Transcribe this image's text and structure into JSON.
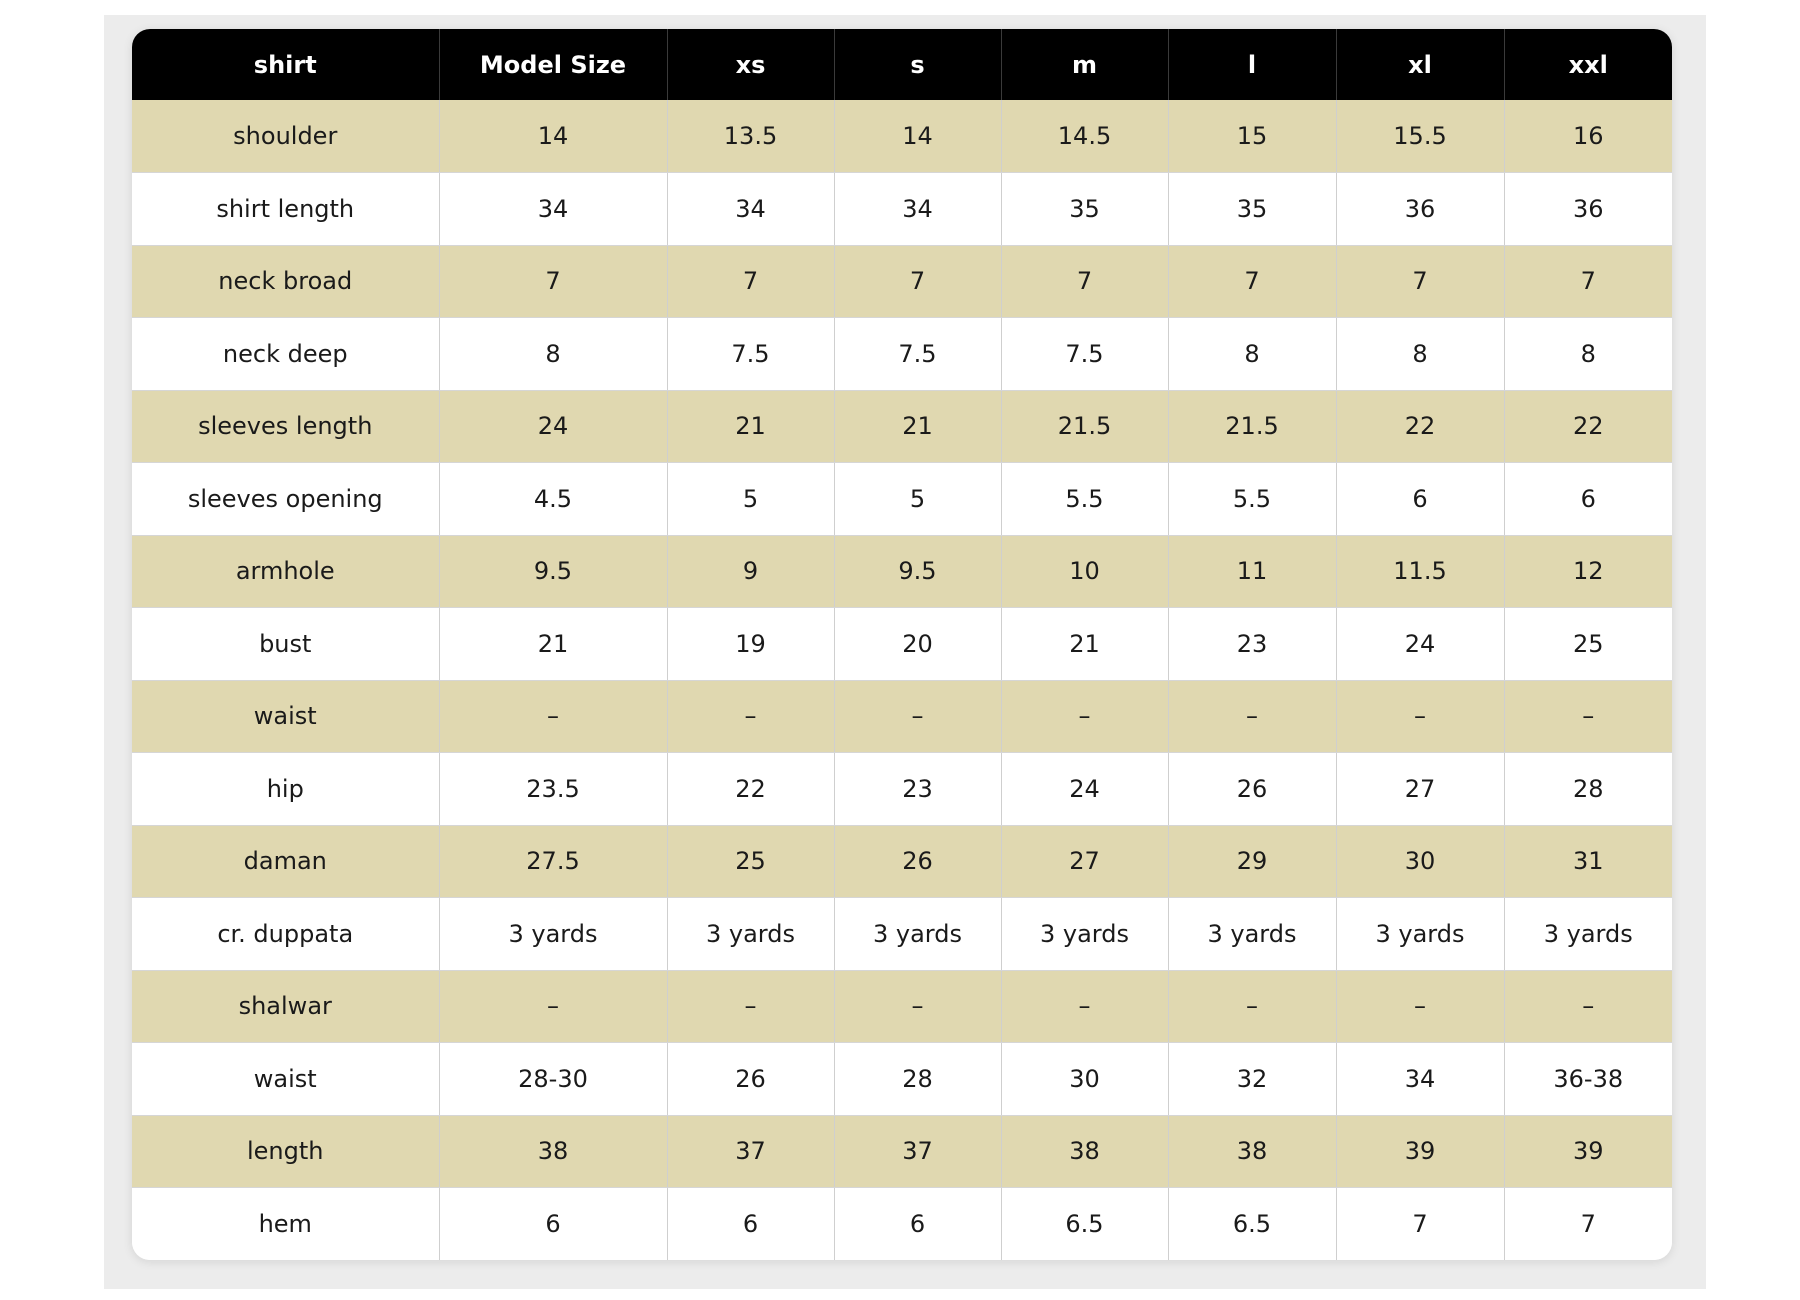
{
  "colors": {
    "header_bg": "#000000",
    "header_text": "#ffffff",
    "band_row": "#e0d8b0",
    "plain_row": "#ffffff",
    "backdrop": "#ececec"
  },
  "table": {
    "headers": [
      "shirt",
      "Model Size",
      "xs",
      "s",
      "m",
      "l",
      "xl",
      "xxl"
    ],
    "rows": [
      [
        "shoulder",
        "14",
        "13.5",
        "14",
        "14.5",
        "15",
        "15.5",
        "16"
      ],
      [
        "shirt length",
        "34",
        "34",
        "34",
        "35",
        "35",
        "36",
        "36"
      ],
      [
        "neck broad",
        "7",
        "7",
        "7",
        "7",
        "7",
        "7",
        "7"
      ],
      [
        "neck deep",
        "8",
        "7.5",
        "7.5",
        "7.5",
        "8",
        "8",
        "8"
      ],
      [
        "sleeves length",
        "24",
        "21",
        "21",
        "21.5",
        "21.5",
        "22",
        "22"
      ],
      [
        "sleeves opening",
        "4.5",
        "5",
        "5",
        "5.5",
        "5.5",
        "6",
        "6"
      ],
      [
        "armhole",
        "9.5",
        "9",
        "9.5",
        "10",
        "11",
        "11.5",
        "12"
      ],
      [
        "bust",
        "21",
        "19",
        "20",
        "21",
        "23",
        "24",
        "25"
      ],
      [
        "waist",
        "–",
        "–",
        "–",
        "–",
        "–",
        "–",
        "–"
      ],
      [
        "hip",
        "23.5",
        "22",
        "23",
        "24",
        "26",
        "27",
        "28"
      ],
      [
        "daman",
        "27.5",
        "25",
        "26",
        "27",
        "29",
        "30",
        "31"
      ],
      [
        "cr. duppata",
        "3 yards",
        "3 yards",
        "3 yards",
        "3 yards",
        "3 yards",
        "3 yards",
        "3 yards"
      ],
      [
        "shalwar",
        "–",
        "–",
        "–",
        "–",
        "–",
        "–",
        "–"
      ],
      [
        "waist",
        "28-30",
        "26",
        "28",
        "30",
        "32",
        "34",
        "36-38"
      ],
      [
        "length",
        "38",
        "37",
        "37",
        "38",
        "38",
        "39",
        "39"
      ],
      [
        "hem",
        "6",
        "6",
        "6",
        "6.5",
        "6.5",
        "7",
        "7"
      ]
    ]
  }
}
